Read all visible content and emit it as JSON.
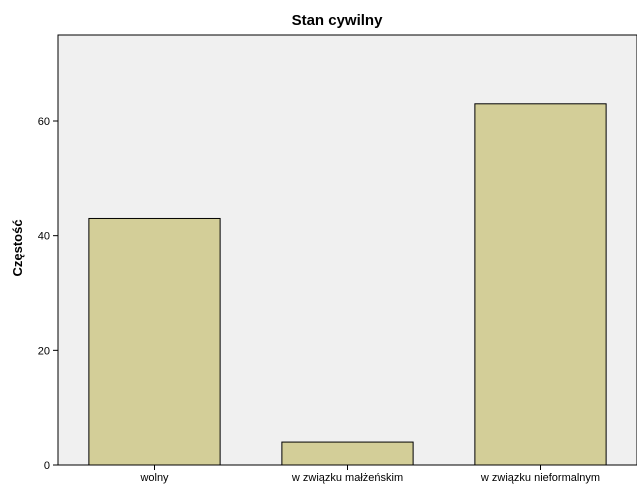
{
  "chart_data": {
    "type": "bar",
    "title": "Stan cywilny",
    "xlabel": "",
    "ylabel": "Częstość",
    "categories": [
      "wolny",
      "w związku małżeńskim",
      "w związku nieformalnym"
    ],
    "values": [
      43,
      4,
      63
    ],
    "ylim": [
      0,
      75
    ],
    "yticks": [
      0,
      20,
      40,
      60
    ],
    "grid": false,
    "legend": "none"
  },
  "colors": {
    "plot_background": "#f0f0f0",
    "bar_fill": "#d3ce98",
    "bar_stroke": "#000000",
    "axis": "#000000"
  }
}
